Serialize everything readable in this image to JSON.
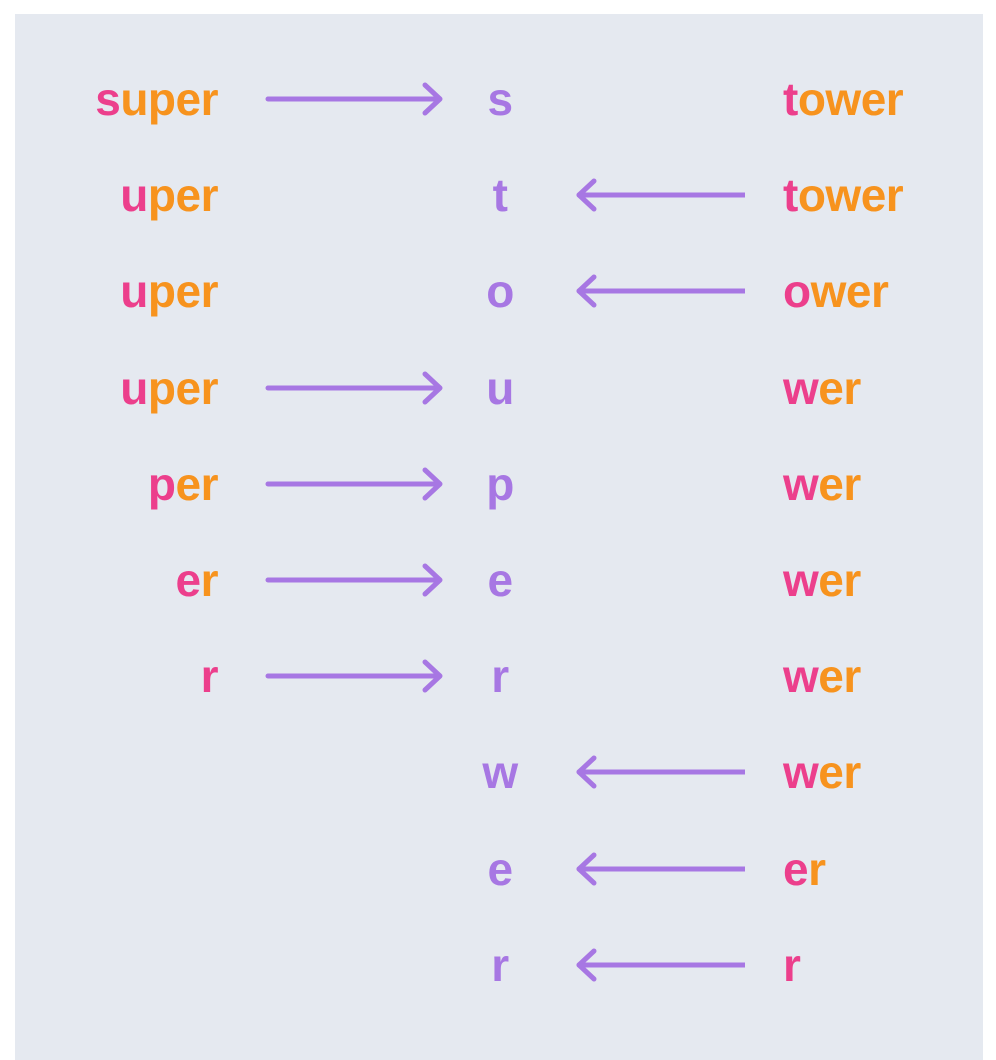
{
  "diagram": {
    "colors": {
      "background": "#e5e9f0",
      "head": "#ec3f8c",
      "tail": "#f7931e",
      "middle": "#a777e3",
      "arrow": "#a777e3"
    },
    "rows": [
      {
        "left": {
          "head": "s",
          "tail": "uper"
        },
        "left_arrow": true,
        "middle": "s",
        "right_arrow": false,
        "right": {
          "head": "t",
          "tail": "ower"
        }
      },
      {
        "left": {
          "head": "u",
          "tail": "per"
        },
        "left_arrow": false,
        "middle": "t",
        "right_arrow": true,
        "right": {
          "head": "t",
          "tail": "ower"
        }
      },
      {
        "left": {
          "head": "u",
          "tail": "per"
        },
        "left_arrow": false,
        "middle": "o",
        "right_arrow": true,
        "right": {
          "head": "o",
          "tail": "wer"
        }
      },
      {
        "left": {
          "head": "u",
          "tail": "per"
        },
        "left_arrow": true,
        "middle": "u",
        "right_arrow": false,
        "right": {
          "head": "w",
          "tail": "er"
        }
      },
      {
        "left": {
          "head": "p",
          "tail": "er"
        },
        "left_arrow": true,
        "middle": "p",
        "right_arrow": false,
        "right": {
          "head": "w",
          "tail": "er"
        }
      },
      {
        "left": {
          "head": "e",
          "tail": "r"
        },
        "left_arrow": true,
        "middle": "e",
        "right_arrow": false,
        "right": {
          "head": "w",
          "tail": "er"
        }
      },
      {
        "left": {
          "head": "r",
          "tail": ""
        },
        "left_arrow": true,
        "middle": "r",
        "right_arrow": false,
        "right": {
          "head": "w",
          "tail": "er"
        }
      },
      {
        "left": null,
        "left_arrow": false,
        "middle": "w",
        "right_arrow": true,
        "right": {
          "head": "w",
          "tail": "er"
        }
      },
      {
        "left": null,
        "left_arrow": false,
        "middle": "e",
        "right_arrow": true,
        "right": {
          "head": "e",
          "tail": "r"
        }
      },
      {
        "left": null,
        "left_arrow": false,
        "middle": "r",
        "right_arrow": true,
        "right": {
          "head": "r",
          "tail": ""
        }
      }
    ]
  }
}
